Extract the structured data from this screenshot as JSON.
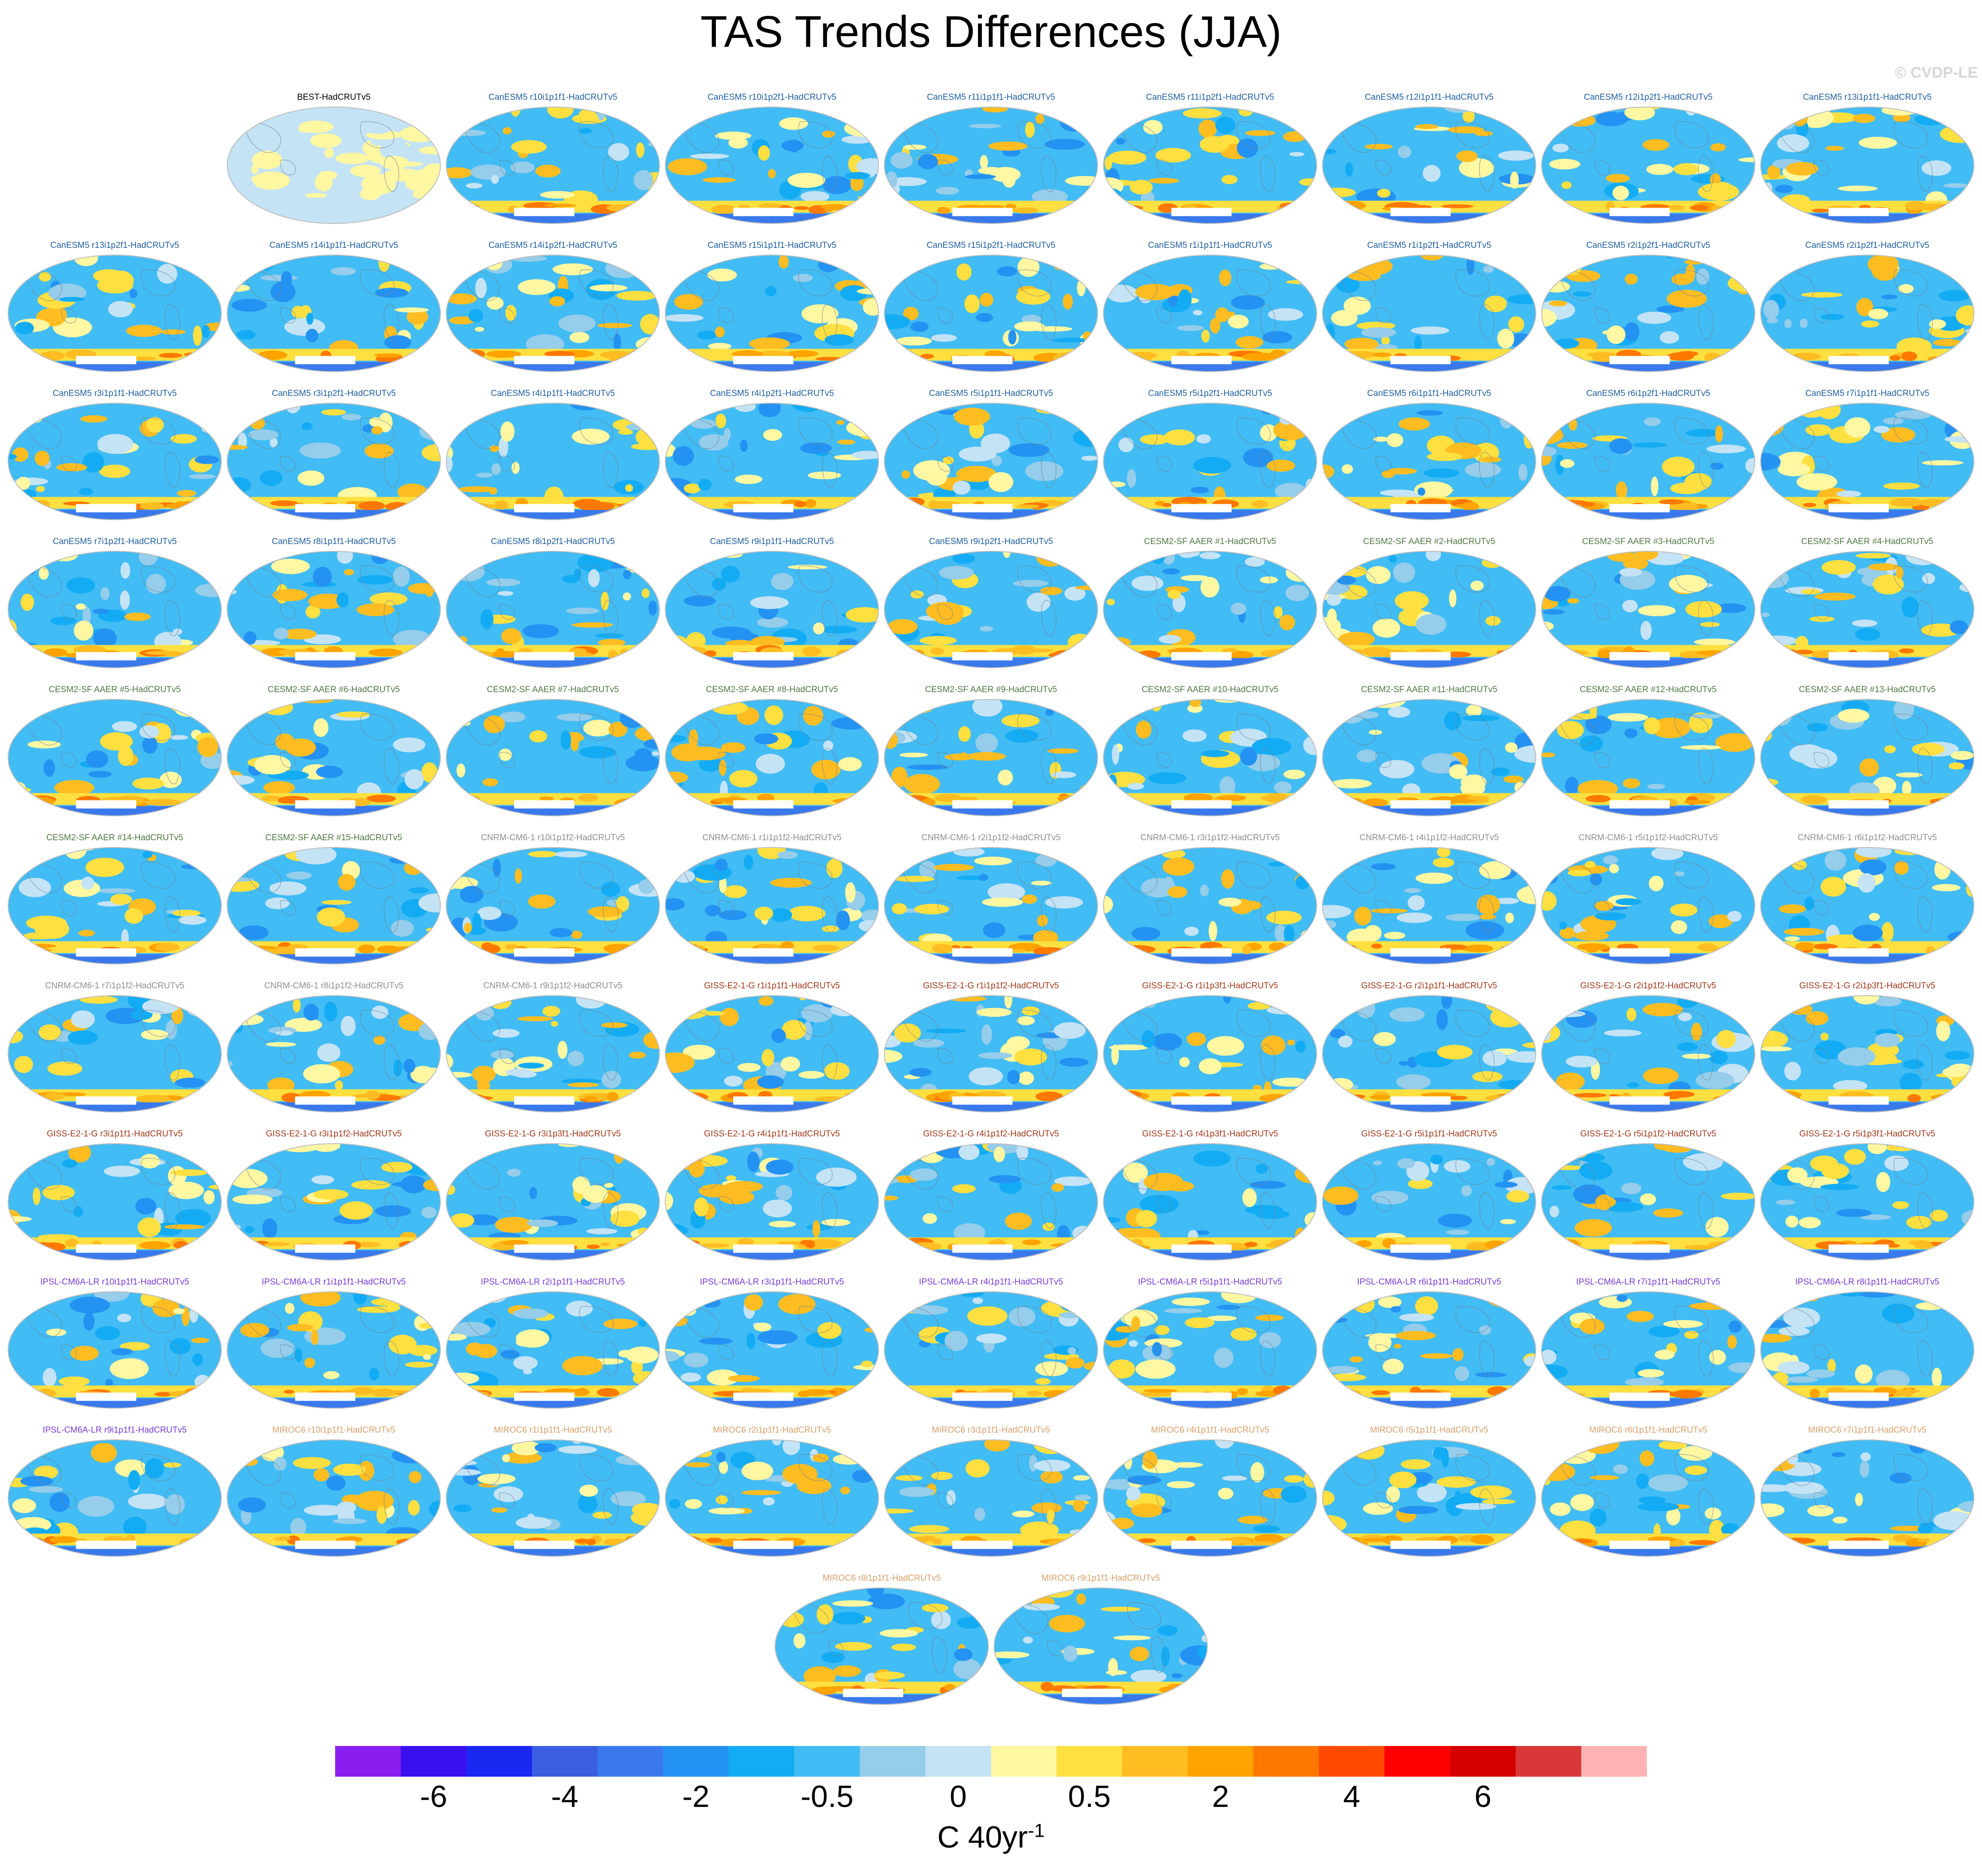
{
  "title": "TAS Trends Differences (JJA)",
  "watermark": "© CVDP-LE",
  "chart_data": {
    "type": "heatmap",
    "title": "TAS Trends Differences (JJA)",
    "projection": "global map (Robinson-style), Pacific-centered",
    "units_label": {
      "base": "C 40yr",
      "superscript": "-1"
    },
    "colorbar": {
      "tick_labels": [
        "-6",
        "-4",
        "-2",
        "-0.5",
        "0",
        "0.5",
        "2",
        "4",
        "6"
      ],
      "colors": [
        "#8a1eef",
        "#3a10ee",
        "#1b28f1",
        "#3a5ee0",
        "#3a79ec",
        "#2492f2",
        "#13acf4",
        "#42bcf4",
        "#95cdea",
        "#c4e3f5",
        "#fff7a1",
        "#ffe040",
        "#ffbd21",
        "#ffa300",
        "#ff7800",
        "#ff4a00",
        "#fe0000",
        "#d40000",
        "#d83838",
        "#ffb3b3"
      ]
    },
    "panels": [
      {
        "label": "BEST-HadCRUTv5",
        "group": "BEST"
      },
      {
        "label": "CanESM5 r10i1p1f1-HadCRUTv5",
        "group": "CanESM5"
      },
      {
        "label": "CanESM5 r10i1p2f1-HadCRUTv5",
        "group": "CanESM5"
      },
      {
        "label": "CanESM5 r11i1p1f1-HadCRUTv5",
        "group": "CanESM5"
      },
      {
        "label": "CanESM5 r11i1p2f1-HadCRUTv5",
        "group": "CanESM5"
      },
      {
        "label": "CanESM5 r12i1p1f1-HadCRUTv5",
        "group": "CanESM5"
      },
      {
        "label": "CanESM5 r12i1p2f1-HadCRUTv5",
        "group": "CanESM5"
      },
      {
        "label": "CanESM5 r13i1p1f1-HadCRUTv5",
        "group": "CanESM5"
      },
      {
        "label": "CanESM5 r13i1p2f1-HadCRUTv5",
        "group": "CanESM5"
      },
      {
        "label": "CanESM5 r14i1p1f1-HadCRUTv5",
        "group": "CanESM5"
      },
      {
        "label": "CanESM5 r14i1p2f1-HadCRUTv5",
        "group": "CanESM5"
      },
      {
        "label": "CanESM5 r15i1p1f1-HadCRUTv5",
        "group": "CanESM5"
      },
      {
        "label": "CanESM5 r15i1p2f1-HadCRUTv5",
        "group": "CanESM5"
      },
      {
        "label": "CanESM5 r1i1p1f1-HadCRUTv5",
        "group": "CanESM5"
      },
      {
        "label": "CanESM5 r1i1p2f1-HadCRUTv5",
        "group": "CanESM5"
      },
      {
        "label": "CanESM5 r2i1p2f1-HadCRUTv5",
        "group": "CanESM5"
      },
      {
        "label": "CanESM5 r2i1p2f1-HadCRUTv5",
        "group": "CanESM5"
      },
      {
        "label": "CanESM5 r3i1p1f1-HadCRUTv5",
        "group": "CanESM5"
      },
      {
        "label": "CanESM5 r3i1p2f1-HadCRUTv5",
        "group": "CanESM5"
      },
      {
        "label": "CanESM5 r4i1p1f1-HadCRUTv5",
        "group": "CanESM5"
      },
      {
        "label": "CanESM5 r4i1p2f1-HadCRUTv5",
        "group": "CanESM5"
      },
      {
        "label": "CanESM5 r5i1p1f1-HadCRUTv5",
        "group": "CanESM5"
      },
      {
        "label": "CanESM5 r5i1p2f1-HadCRUTv5",
        "group": "CanESM5"
      },
      {
        "label": "CanESM5 r6i1p1f1-HadCRUTv5",
        "group": "CanESM5"
      },
      {
        "label": "CanESM5 r6i1p2f1-HadCRUTv5",
        "group": "CanESM5"
      },
      {
        "label": "CanESM5 r7i1p1f1-HadCRUTv5",
        "group": "CanESM5"
      },
      {
        "label": "CanESM5 r7i1p2f1-HadCRUTv5",
        "group": "CanESM5"
      },
      {
        "label": "CanESM5 r8i1p1f1-HadCRUTv5",
        "group": "CanESM5"
      },
      {
        "label": "CanESM5 r8i1p2f1-HadCRUTv5",
        "group": "CanESM5"
      },
      {
        "label": "CanESM5 r9i1p1f1-HadCRUTv5",
        "group": "CanESM5"
      },
      {
        "label": "CanESM5 r9i1p2f1-HadCRUTv5",
        "group": "CanESM5"
      },
      {
        "label": "CESM2-SF AAER #1-HadCRUTv5",
        "group": "CESM2"
      },
      {
        "label": "CESM2-SF AAER #2-HadCRUTv5",
        "group": "CESM2"
      },
      {
        "label": "CESM2-SF AAER #3-HadCRUTv5",
        "group": "CESM2"
      },
      {
        "label": "CESM2-SF AAER #4-HadCRUTv5",
        "group": "CESM2"
      },
      {
        "label": "CESM2-SF AAER #5-HadCRUTv5",
        "group": "CESM2"
      },
      {
        "label": "CESM2-SF AAER #6-HadCRUTv5",
        "group": "CESM2"
      },
      {
        "label": "CESM2-SF AAER #7-HadCRUTv5",
        "group": "CESM2"
      },
      {
        "label": "CESM2-SF AAER #8-HadCRUTv5",
        "group": "CESM2"
      },
      {
        "label": "CESM2-SF AAER #9-HadCRUTv5",
        "group": "CESM2"
      },
      {
        "label": "CESM2-SF AAER #10-HadCRUTv5",
        "group": "CESM2"
      },
      {
        "label": "CESM2-SF AAER #11-HadCRUTv5",
        "group": "CESM2"
      },
      {
        "label": "CESM2-SF AAER #12-HadCRUTv5",
        "group": "CESM2"
      },
      {
        "label": "CESM2-SF AAER #13-HadCRUTv5",
        "group": "CESM2"
      },
      {
        "label": "CESM2-SF AAER #14-HadCRUTv5",
        "group": "CESM2"
      },
      {
        "label": "CESM2-SF AAER #15-HadCRUTv5",
        "group": "CESM2"
      },
      {
        "label": "CNRM-CM6-1 r10i1p1f2-HadCRUTv5",
        "group": "CNRM"
      },
      {
        "label": "CNRM-CM6-1 r1i1p1f2-HadCRUTv5",
        "group": "CNRM"
      },
      {
        "label": "CNRM-CM6-1 r2i1p1f2-HadCRUTv5",
        "group": "CNRM"
      },
      {
        "label": "CNRM-CM6-1 r3i1p1f2-HadCRUTv5",
        "group": "CNRM"
      },
      {
        "label": "CNRM-CM6-1 r4i1p1f2-HadCRUTv5",
        "group": "CNRM"
      },
      {
        "label": "CNRM-CM6-1 r5i1p1f2-HadCRUTv5",
        "group": "CNRM"
      },
      {
        "label": "CNRM-CM6-1 r6i1p1f2-HadCRUTv5",
        "group": "CNRM"
      },
      {
        "label": "CNRM-CM6-1 r7i1p1f2-HadCRUTv5",
        "group": "CNRM"
      },
      {
        "label": "CNRM-CM6-1 r8i1p1f2-HadCRUTv5",
        "group": "CNRM"
      },
      {
        "label": "CNRM-CM6-1 r9i1p1f2-HadCRUTv5",
        "group": "CNRM"
      },
      {
        "label": "GISS-E2-1-G r1i1p1f1-HadCRUTv5",
        "group": "GISS"
      },
      {
        "label": "GISS-E2-1-G r1i1p1f2-HadCRUTv5",
        "group": "GISS"
      },
      {
        "label": "GISS-E2-1-G r1i1p3f1-HadCRUTv5",
        "group": "GISS"
      },
      {
        "label": "GISS-E2-1-G r2i1p1f1-HadCRUTv5",
        "group": "GISS"
      },
      {
        "label": "GISS-E2-1-G r2i1p1f2-HadCRUTv5",
        "group": "GISS"
      },
      {
        "label": "GISS-E2-1-G r2i1p3f1-HadCRUTv5",
        "group": "GISS"
      },
      {
        "label": "GISS-E2-1-G r3i1p1f1-HadCRUTv5",
        "group": "GISS"
      },
      {
        "label": "GISS-E2-1-G r3i1p1f2-HadCRUTv5",
        "group": "GISS"
      },
      {
        "label": "GISS-E2-1-G r3i1p3f1-HadCRUTv5",
        "group": "GISS"
      },
      {
        "label": "GISS-E2-1-G r4i1p1f1-HadCRUTv5",
        "group": "GISS"
      },
      {
        "label": "GISS-E2-1-G r4i1p1f2-HadCRUTv5",
        "group": "GISS"
      },
      {
        "label": "GISS-E2-1-G r4i1p3f1-HadCRUTv5",
        "group": "GISS"
      },
      {
        "label": "GISS-E2-1-G r5i1p1f1-HadCRUTv5",
        "group": "GISS"
      },
      {
        "label": "GISS-E2-1-G r5i1p1f2-HadCRUTv5",
        "group": "GISS"
      },
      {
        "label": "GISS-E2-1-G r5i1p3f1-HadCRUTv5",
        "group": "GISS"
      },
      {
        "label": "IPSL-CM6A-LR r10i1p1f1-HadCRUTv5",
        "group": "IPSL"
      },
      {
        "label": "IPSL-CM6A-LR r1i1p1f1-HadCRUTv5",
        "group": "IPSL"
      },
      {
        "label": "IPSL-CM6A-LR r2i1p1f1-HadCRUTv5",
        "group": "IPSL"
      },
      {
        "label": "IPSL-CM6A-LR r3i1p1f1-HadCRUTv5",
        "group": "IPSL"
      },
      {
        "label": "IPSL-CM6A-LR r4i1p1f1-HadCRUTv5",
        "group": "IPSL"
      },
      {
        "label": "IPSL-CM6A-LR r5i1p1f1-HadCRUTv5",
        "group": "IPSL"
      },
      {
        "label": "IPSL-CM6A-LR r6i1p1f1-HadCRUTv5",
        "group": "IPSL"
      },
      {
        "label": "IPSL-CM6A-LR r7i1p1f1-HadCRUTv5",
        "group": "IPSL"
      },
      {
        "label": "IPSL-CM6A-LR r8i1p1f1-HadCRUTv5",
        "group": "IPSL"
      },
      {
        "label": "IPSL-CM6A-LR r9i1p1f1-HadCRUTv5",
        "group": "IPSL"
      },
      {
        "label": "MIROC6 r10i1p1f1-HadCRUTv5",
        "group": "MIROC6"
      },
      {
        "label": "MIROC6 r1i1p1f1-HadCRUTv5",
        "group": "MIROC6"
      },
      {
        "label": "MIROC6 r2i1p1f1-HadCRUTv5",
        "group": "MIROC6"
      },
      {
        "label": "MIROC6 r3i1p1f1-HadCRUTv5",
        "group": "MIROC6"
      },
      {
        "label": "MIROC6 r4i1p1f1-HadCRUTv5",
        "group": "MIROC6"
      },
      {
        "label": "MIROC6 r5i1p1f1-HadCRUTv5",
        "group": "MIROC6"
      },
      {
        "label": "MIROC6 r6i1p1f1-HadCRUTv5",
        "group": "MIROC6"
      },
      {
        "label": "MIROC6 r7i1p1f1-HadCRUTv5",
        "group": "MIROC6"
      },
      {
        "label": "MIROC6 r8i1p1f1-HadCRUTv5",
        "group": "MIROC6"
      },
      {
        "label": "MIROC6 r9i1p1f1-HadCRUTv5",
        "group": "MIROC6"
      }
    ],
    "group_label_colors": {
      "BEST": "#000000",
      "CanESM5": "#1f5fa0",
      "CESM2": "#4f7a43",
      "CNRM": "#8f8f8f",
      "GISS": "#a03a1a",
      "IPSL": "#7a3ad6",
      "MIROC6": "#d9a06a"
    }
  }
}
